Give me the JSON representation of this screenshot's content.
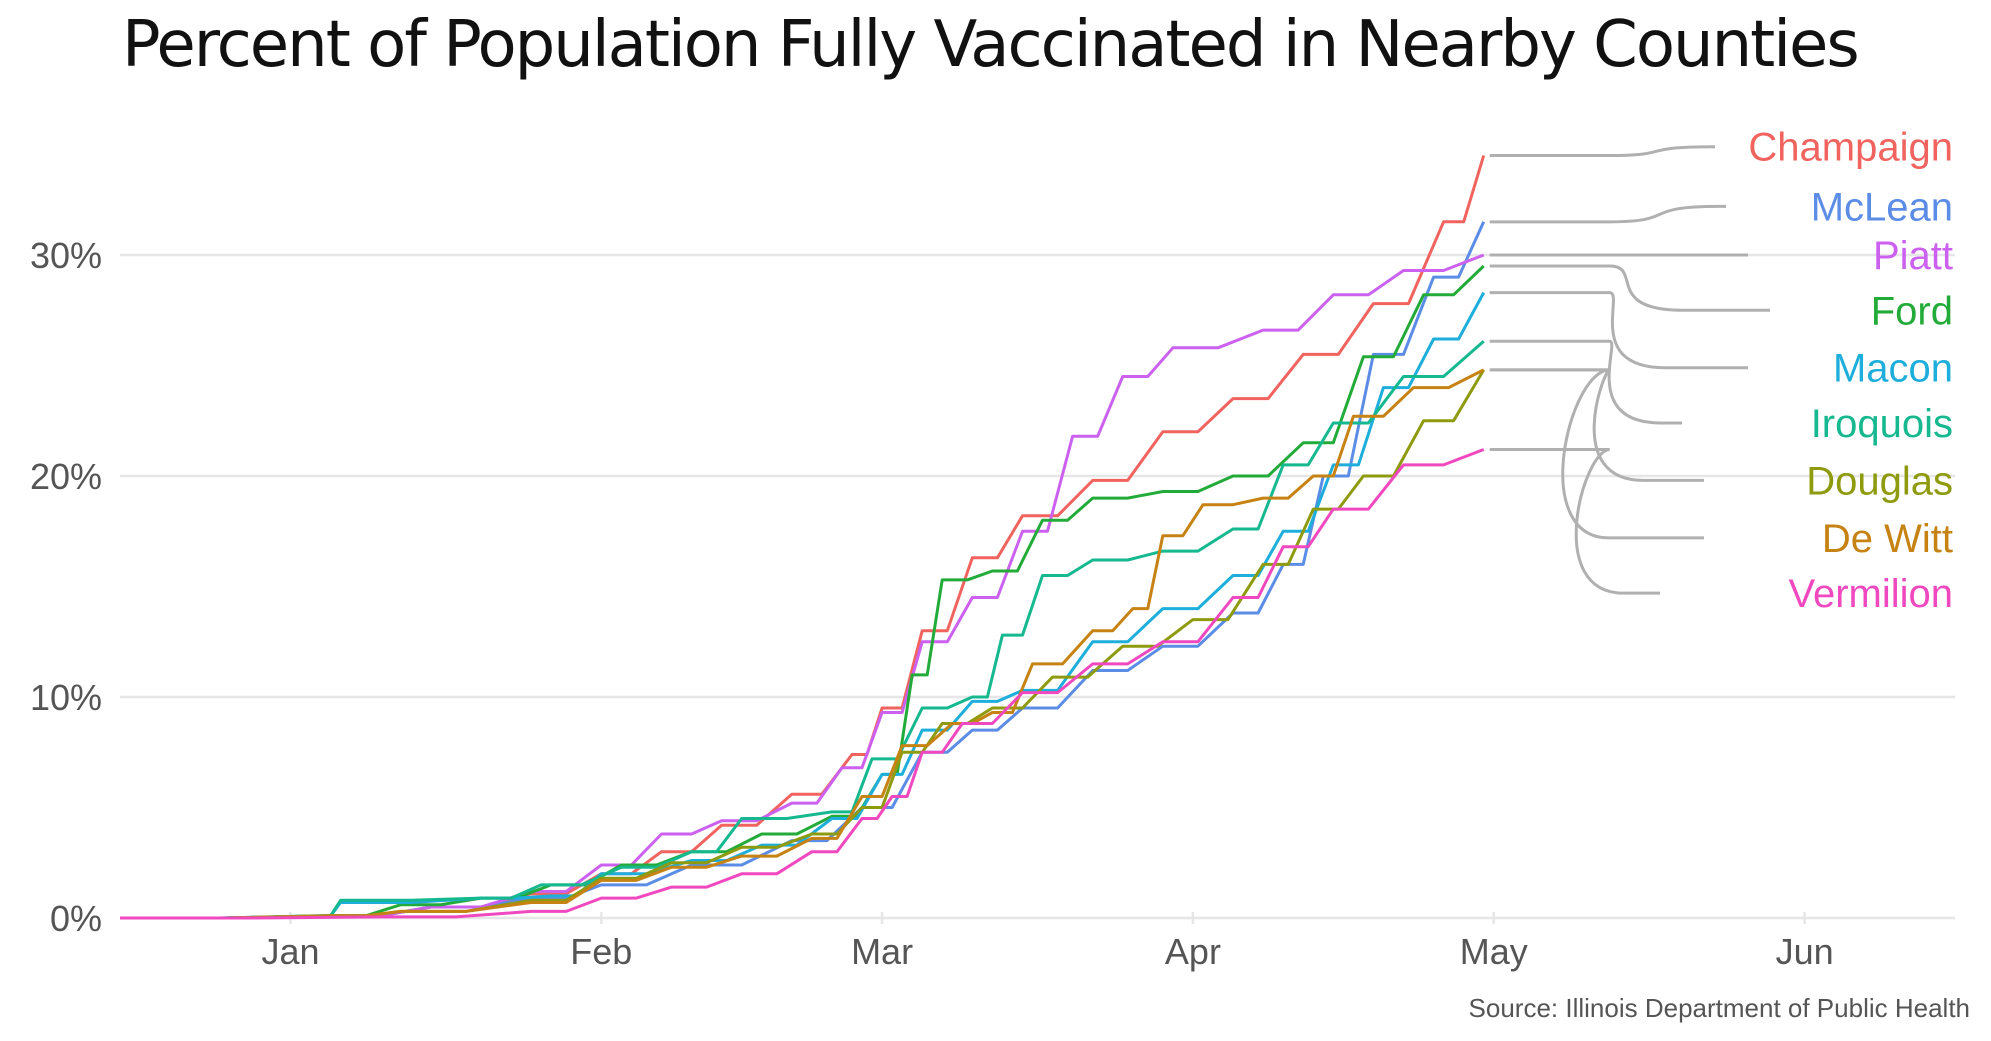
{
  "title": "Percent of Population Fully Vaccinated in Nearby Counties",
  "source": "Source: Illinois Department of Public Health",
  "chart_data": {
    "type": "line",
    "title": "Percent of Population Fully Vaccinated in Nearby Counties",
    "xlabel": "",
    "ylabel": "",
    "x_ticks": [
      "Jan",
      "Feb",
      "Mar",
      "Apr",
      "May",
      "Jun"
    ],
    "y_ticks": [
      "0%",
      "10%",
      "20%",
      "30%"
    ],
    "xlim": [
      "2020-12-15",
      "2021-06-16"
    ],
    "ylim": [
      0,
      35.5
    ],
    "grid": "horizontal",
    "legend": "direct labels at right",
    "series": [
      {
        "name": "Champaign",
        "color": "#F0635E",
        "label_value": 34.9,
        "points": [
          [
            "2020-12-15",
            0
          ],
          [
            "2021-01-05",
            0.1
          ],
          [
            "2021-01-15",
            0.5
          ],
          [
            "2021-01-25",
            1.1
          ],
          [
            "2021-02-01",
            2.0
          ],
          [
            "2021-02-07",
            3.0
          ],
          [
            "2021-02-13",
            4.2
          ],
          [
            "2021-02-20",
            5.6
          ],
          [
            "2021-02-26",
            7.4
          ],
          [
            "2021-03-01",
            9.5
          ],
          [
            "2021-03-05",
            13.0
          ],
          [
            "2021-03-10",
            16.3
          ],
          [
            "2021-03-15",
            18.2
          ],
          [
            "2021-03-22",
            19.8
          ],
          [
            "2021-03-29",
            22.0
          ],
          [
            "2021-04-05",
            23.5
          ],
          [
            "2021-04-12",
            25.5
          ],
          [
            "2021-04-19",
            27.8
          ],
          [
            "2021-04-26",
            31.5
          ],
          [
            "2021-04-30",
            34.5
          ]
        ]
      },
      {
        "name": "McLean",
        "color": "#5B8CE6",
        "label_value": 32.2,
        "points": [
          [
            "2020-12-15",
            0
          ],
          [
            "2021-01-05",
            0.1
          ],
          [
            "2021-01-15",
            0.5
          ],
          [
            "2021-01-25",
            0.9
          ],
          [
            "2021-02-01",
            1.5
          ],
          [
            "2021-02-10",
            2.4
          ],
          [
            "2021-02-20",
            3.5
          ],
          [
            "2021-02-27",
            5.0
          ],
          [
            "2021-03-05",
            7.5
          ],
          [
            "2021-03-10",
            8.5
          ],
          [
            "2021-03-15",
            9.5
          ],
          [
            "2021-03-22",
            11.2
          ],
          [
            "2021-03-29",
            12.3
          ],
          [
            "2021-04-05",
            13.8
          ],
          [
            "2021-04-10",
            16.0
          ],
          [
            "2021-04-14",
            20.0
          ],
          [
            "2021-04-19",
            25.5
          ],
          [
            "2021-04-25",
            29.0
          ],
          [
            "2021-04-30",
            31.5
          ]
        ]
      },
      {
        "name": "Piatt",
        "color": "#CC61F0",
        "label_value": 30.0,
        "points": [
          [
            "2020-12-15",
            0
          ],
          [
            "2021-01-05",
            0.1
          ],
          [
            "2021-01-15",
            0.5
          ],
          [
            "2021-01-25",
            1.2
          ],
          [
            "2021-02-01",
            2.4
          ],
          [
            "2021-02-07",
            3.8
          ],
          [
            "2021-02-13",
            4.4
          ],
          [
            "2021-02-20",
            5.2
          ],
          [
            "2021-02-25",
            6.8
          ],
          [
            "2021-03-01",
            9.3
          ],
          [
            "2021-03-05",
            12.5
          ],
          [
            "2021-03-10",
            14.5
          ],
          [
            "2021-03-15",
            17.5
          ],
          [
            "2021-03-20",
            21.8
          ],
          [
            "2021-03-25",
            24.5
          ],
          [
            "2021-03-30",
            25.8
          ],
          [
            "2021-04-08",
            26.6
          ],
          [
            "2021-04-15",
            28.2
          ],
          [
            "2021-04-22",
            29.3
          ],
          [
            "2021-04-30",
            30.0
          ]
        ]
      },
      {
        "name": "Ford",
        "color": "#23AB39",
        "label_value": 27.5,
        "points": [
          [
            "2020-12-15",
            0
          ],
          [
            "2021-01-05",
            0.1
          ],
          [
            "2021-01-12",
            0.6
          ],
          [
            "2021-01-20",
            0.9
          ],
          [
            "2021-01-27",
            1.5
          ],
          [
            "2021-02-03",
            2.4
          ],
          [
            "2021-02-10",
            3.0
          ],
          [
            "2021-02-17",
            3.8
          ],
          [
            "2021-02-24",
            4.6
          ],
          [
            "2021-03-01",
            6.5
          ],
          [
            "2021-03-04",
            11.0
          ],
          [
            "2021-03-07",
            15.3
          ],
          [
            "2021-03-12",
            15.7
          ],
          [
            "2021-03-17",
            18.0
          ],
          [
            "2021-03-22",
            19.0
          ],
          [
            "2021-03-29",
            19.3
          ],
          [
            "2021-04-05",
            20.0
          ],
          [
            "2021-04-12",
            21.5
          ],
          [
            "2021-04-18",
            25.4
          ],
          [
            "2021-04-24",
            28.2
          ],
          [
            "2021-04-30",
            29.5
          ]
        ]
      },
      {
        "name": "Macon",
        "color": "#1EAEDB",
        "label_value": 24.9,
        "points": [
          [
            "2020-12-15",
            0
          ],
          [
            "2021-01-04",
            0.1
          ],
          [
            "2021-01-06",
            0.7
          ],
          [
            "2021-01-20",
            0.9
          ],
          [
            "2021-01-27",
            1.0
          ],
          [
            "2021-02-01",
            2.0
          ],
          [
            "2021-02-10",
            2.6
          ],
          [
            "2021-02-17",
            3.3
          ],
          [
            "2021-02-24",
            4.5
          ],
          [
            "2021-03-01",
            6.5
          ],
          [
            "2021-03-05",
            8.5
          ],
          [
            "2021-03-10",
            9.8
          ],
          [
            "2021-03-15",
            10.3
          ],
          [
            "2021-03-22",
            12.5
          ],
          [
            "2021-03-29",
            14.0
          ],
          [
            "2021-04-05",
            15.5
          ],
          [
            "2021-04-10",
            17.5
          ],
          [
            "2021-04-15",
            20.5
          ],
          [
            "2021-04-20",
            24.0
          ],
          [
            "2021-04-25",
            26.2
          ],
          [
            "2021-04-30",
            28.3
          ]
        ]
      },
      {
        "name": "Iroquois",
        "color": "#16B890",
        "label_value": 22.4,
        "points": [
          [
            "2020-12-15",
            0
          ],
          [
            "2021-01-04",
            0.1
          ],
          [
            "2021-01-06",
            0.8
          ],
          [
            "2021-01-20",
            0.9
          ],
          [
            "2021-01-26",
            1.5
          ],
          [
            "2021-02-03",
            2.3
          ],
          [
            "2021-02-10",
            3.0
          ],
          [
            "2021-02-15",
            4.5
          ],
          [
            "2021-02-24",
            4.8
          ],
          [
            "2021-02-28",
            7.2
          ],
          [
            "2021-03-05",
            9.5
          ],
          [
            "2021-03-10",
            10.0
          ],
          [
            "2021-03-13",
            12.8
          ],
          [
            "2021-03-17",
            15.5
          ],
          [
            "2021-03-22",
            16.2
          ],
          [
            "2021-03-29",
            16.6
          ],
          [
            "2021-04-05",
            17.6
          ],
          [
            "2021-04-10",
            20.5
          ],
          [
            "2021-04-15",
            22.4
          ],
          [
            "2021-04-22",
            24.5
          ],
          [
            "2021-04-30",
            26.1
          ]
        ]
      },
      {
        "name": "Douglas",
        "color": "#8E9B0E",
        "label_value": 19.8,
        "points": [
          [
            "2020-12-15",
            0
          ],
          [
            "2021-01-05",
            0.1
          ],
          [
            "2021-01-12",
            0.3
          ],
          [
            "2021-01-25",
            0.8
          ],
          [
            "2021-02-01",
            1.8
          ],
          [
            "2021-02-08",
            2.5
          ],
          [
            "2021-02-15",
            3.2
          ],
          [
            "2021-02-22",
            3.8
          ],
          [
            "2021-02-27",
            5.0
          ],
          [
            "2021-03-03",
            7.5
          ],
          [
            "2021-03-07",
            8.8
          ],
          [
            "2021-03-12",
            9.5
          ],
          [
            "2021-03-18",
            10.9
          ],
          [
            "2021-03-25",
            12.3
          ],
          [
            "2021-04-01",
            13.5
          ],
          [
            "2021-04-08",
            16.0
          ],
          [
            "2021-04-13",
            18.5
          ],
          [
            "2021-04-18",
            20.0
          ],
          [
            "2021-04-24",
            22.5
          ],
          [
            "2021-04-30",
            24.8
          ]
        ]
      },
      {
        "name": "De Witt",
        "color": "#C68213",
        "label_value": 17.2,
        "points": [
          [
            "2020-12-15",
            0
          ],
          [
            "2021-01-05",
            0.1
          ],
          [
            "2021-01-12",
            0.3
          ],
          [
            "2021-01-25",
            0.7
          ],
          [
            "2021-02-01",
            1.7
          ],
          [
            "2021-02-08",
            2.3
          ],
          [
            "2021-02-15",
            2.8
          ],
          [
            "2021-02-22",
            3.6
          ],
          [
            "2021-02-27",
            5.5
          ],
          [
            "2021-03-03",
            7.8
          ],
          [
            "2021-03-08",
            8.8
          ],
          [
            "2021-03-12",
            9.3
          ],
          [
            "2021-03-16",
            11.5
          ],
          [
            "2021-03-22",
            13.0
          ],
          [
            "2021-03-26",
            14.0
          ],
          [
            "2021-03-29",
            17.3
          ],
          [
            "2021-04-02",
            18.7
          ],
          [
            "2021-04-08",
            19.0
          ],
          [
            "2021-04-13",
            20.0
          ],
          [
            "2021-04-17",
            22.7
          ],
          [
            "2021-04-23",
            24.0
          ],
          [
            "2021-04-30",
            24.8
          ]
        ]
      },
      {
        "name": "Vermilion",
        "color": "#F049C0",
        "label_value": 14.7,
        "points": [
          [
            "2020-12-15",
            0
          ],
          [
            "2021-01-10",
            0.05
          ],
          [
            "2021-01-25",
            0.3
          ],
          [
            "2021-02-01",
            0.9
          ],
          [
            "2021-02-08",
            1.4
          ],
          [
            "2021-02-15",
            2.0
          ],
          [
            "2021-02-22",
            3.0
          ],
          [
            "2021-02-27",
            4.5
          ],
          [
            "2021-03-02",
            5.5
          ],
          [
            "2021-03-05",
            7.5
          ],
          [
            "2021-03-09",
            8.8
          ],
          [
            "2021-03-15",
            10.2
          ],
          [
            "2021-03-22",
            11.5
          ],
          [
            "2021-03-29",
            12.5
          ],
          [
            "2021-04-05",
            14.5
          ],
          [
            "2021-04-10",
            16.8
          ],
          [
            "2021-04-15",
            18.5
          ],
          [
            "2021-04-22",
            20.5
          ],
          [
            "2021-04-30",
            21.2
          ]
        ]
      }
    ]
  }
}
